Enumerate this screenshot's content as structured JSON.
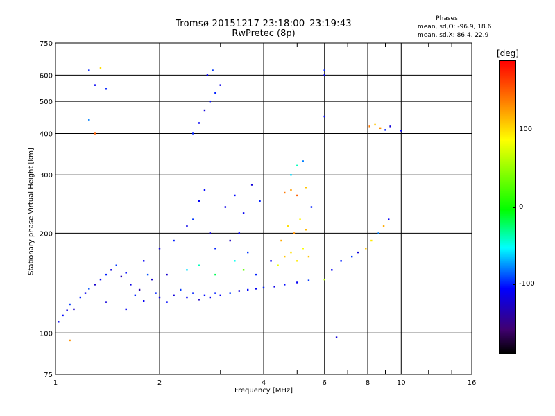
{
  "chart_data": {
    "type": "scatter",
    "title": "Tromsø 20151217 23:18:00–23:19:43",
    "subtitle": "RwPretec (8p)",
    "xlabel": "Frequency [MHz]",
    "ylabel": "Stationary phase Virtual Height [km]",
    "x_scale": "log",
    "y_scale": "log",
    "xlim": [
      1,
      16
    ],
    "ylim": [
      75,
      750
    ],
    "x_ticks": [
      1,
      2,
      4,
      6,
      8,
      10,
      16
    ],
    "y_ticks": [
      75,
      100,
      200,
      300,
      400,
      500,
      600,
      750
    ],
    "grid": true,
    "legend": {
      "heading": "Phases",
      "line1": "mean, sd,O: -96.9, 18.6",
      "line2": "mean, sd,X: 86.4, 22.9"
    },
    "colorbar": {
      "unit": "[deg]",
      "ticks": [
        100,
        0,
        -100
      ],
      "min": -190,
      "max": 190
    },
    "series": [
      {
        "role": "dense points, each an [x, y, phase_deg] triple",
        "points": [
          [
            1.02,
            108,
            -110
          ],
          [
            1.05,
            113,
            -105
          ],
          [
            1.08,
            117,
            -120
          ],
          [
            1.1,
            122,
            -95
          ],
          [
            1.13,
            118,
            -130
          ],
          [
            1.18,
            128,
            -100
          ],
          [
            1.22,
            132,
            -115
          ],
          [
            1.25,
            136,
            -90
          ],
          [
            1.3,
            140,
            -125
          ],
          [
            1.35,
            145,
            -110
          ],
          [
            1.4,
            150,
            -100
          ],
          [
            1.45,
            155,
            -120
          ],
          [
            1.5,
            160,
            -95
          ],
          [
            1.55,
            148,
            -135
          ],
          [
            1.6,
            152,
            -105
          ],
          [
            1.65,
            140,
            -115
          ],
          [
            1.7,
            130,
            -100
          ],
          [
            1.75,
            135,
            -140
          ],
          [
            1.8,
            125,
            -110
          ],
          [
            1.85,
            150,
            -90
          ],
          [
            1.9,
            145,
            -125
          ],
          [
            1.95,
            132,
            -100
          ],
          [
            2.0,
            128,
            -115
          ],
          [
            2.1,
            124,
            -105
          ],
          [
            2.2,
            130,
            -120
          ],
          [
            2.3,
            135,
            -95
          ],
          [
            2.4,
            128,
            -110
          ],
          [
            2.5,
            132,
            -100
          ],
          [
            2.6,
            126,
            -130
          ],
          [
            2.7,
            130,
            -105
          ],
          [
            2.8,
            128,
            -115
          ],
          [
            2.9,
            132,
            -100
          ],
          [
            3.0,
            130,
            -110
          ],
          [
            3.2,
            132,
            -95
          ],
          [
            3.4,
            134,
            -120
          ],
          [
            3.6,
            135,
            -105
          ],
          [
            3.8,
            136,
            -110
          ],
          [
            4.0,
            137,
            -100
          ],
          [
            4.3,
            138,
            -115
          ],
          [
            4.6,
            140,
            -105
          ],
          [
            5.0,
            142,
            -110
          ],
          [
            5.4,
            144,
            -95
          ],
          [
            1.8,
            165,
            -110
          ],
          [
            2.0,
            180,
            -120
          ],
          [
            2.2,
            190,
            -100
          ],
          [
            2.4,
            210,
            -115
          ],
          [
            2.5,
            220,
            -95
          ],
          [
            2.6,
            250,
            -110
          ],
          [
            2.7,
            270,
            -105
          ],
          [
            2.8,
            200,
            -120
          ],
          [
            2.9,
            180,
            -100
          ],
          [
            3.1,
            240,
            -115
          ],
          [
            3.3,
            260,
            -105
          ],
          [
            3.5,
            230,
            -110
          ],
          [
            3.7,
            280,
            -120
          ],
          [
            3.9,
            250,
            -100
          ],
          [
            3.2,
            190,
            -130
          ],
          [
            3.4,
            200,
            -110
          ],
          [
            3.6,
            175,
            -95
          ],
          [
            2.4,
            155,
            -60
          ],
          [
            2.6,
            160,
            -40
          ],
          [
            2.9,
            150,
            -20
          ],
          [
            3.3,
            165,
            -50
          ],
          [
            3.5,
            155,
            30
          ],
          [
            4.4,
            160,
            80
          ],
          [
            4.6,
            170,
            110
          ],
          [
            4.8,
            175,
            100
          ],
          [
            5.0,
            165,
            95
          ],
          [
            5.2,
            180,
            85
          ],
          [
            5.4,
            170,
            110
          ],
          [
            4.5,
            190,
            120
          ],
          [
            4.7,
            210,
            100
          ],
          [
            4.9,
            200,
            130
          ],
          [
            5.1,
            220,
            90
          ],
          [
            5.3,
            205,
            115
          ],
          [
            4.6,
            265,
            140
          ],
          [
            4.8,
            270,
            125
          ],
          [
            5.0,
            260,
            150
          ],
          [
            5.3,
            275,
            110
          ],
          [
            4.8,
            300,
            -60
          ],
          [
            5.0,
            320,
            -40
          ],
          [
            5.2,
            330,
            -80
          ],
          [
            5.5,
            240,
            -100
          ],
          [
            6.0,
            145,
            60
          ],
          [
            6.3,
            155,
            -110
          ],
          [
            6.7,
            165,
            -100
          ],
          [
            7.2,
            170,
            -95
          ],
          [
            7.5,
            175,
            -120
          ],
          [
            7.9,
            180,
            110
          ],
          [
            8.2,
            190,
            95
          ],
          [
            8.6,
            200,
            -80
          ],
          [
            8.9,
            210,
            120
          ],
          [
            9.2,
            220,
            -110
          ],
          [
            8.1,
            420,
            140
          ],
          [
            8.4,
            425,
            110
          ],
          [
            8.7,
            415,
            130
          ],
          [
            9.0,
            410,
            -100
          ],
          [
            9.3,
            420,
            -120
          ],
          [
            10.0,
            408,
            -110
          ],
          [
            2.5,
            400,
            -100
          ],
          [
            2.6,
            430,
            -110
          ],
          [
            2.7,
            470,
            -120
          ],
          [
            2.8,
            500,
            -105
          ],
          [
            2.9,
            530,
            -100
          ],
          [
            3.0,
            560,
            -115
          ],
          [
            2.75,
            600,
            -110
          ],
          [
            2.85,
            620,
            -95
          ],
          [
            1.3,
            560,
            -110
          ],
          [
            1.4,
            545,
            -100
          ],
          [
            1.25,
            620,
            -100
          ],
          [
            1.35,
            630,
            100
          ],
          [
            1.25,
            440,
            -80
          ],
          [
            1.3,
            400,
            150
          ],
          [
            6.0,
            600,
            -110
          ],
          [
            6.0,
            620,
            -100
          ],
          [
            6.0,
            450,
            -105
          ],
          [
            6.5,
            97,
            -120
          ],
          [
            1.1,
            95,
            130
          ],
          [
            4.2,
            165,
            -110
          ],
          [
            3.8,
            150,
            -100
          ],
          [
            2.1,
            150,
            -125
          ],
          [
            1.6,
            118,
            -110
          ],
          [
            1.4,
            124,
            -120
          ]
        ]
      }
    ]
  }
}
